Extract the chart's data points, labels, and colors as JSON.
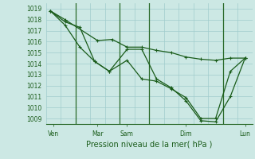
{
  "xlabel": "Pression niveau de la mer( hPa )",
  "bg_color": "#cce8e4",
  "grid_color": "#a0cccc",
  "line_color": "#1a5c1a",
  "vline_color": "#2a6a2a",
  "ylim": [
    1008.5,
    1019.5
  ],
  "yticks": [
    1009,
    1010,
    1011,
    1012,
    1013,
    1014,
    1015,
    1016,
    1017,
    1018,
    1019
  ],
  "xlim": [
    0,
    14
  ],
  "xtick_positions": [
    0.5,
    3.5,
    5.5,
    9.5,
    13.5
  ],
  "xtick_labels": [
    "Ven",
    "Mar",
    "Sam",
    "Dim",
    "Lun"
  ],
  "vlines_x": [
    2,
    5,
    7,
    12
  ],
  "series1_x": [
    0.3,
    1.3,
    3.5,
    4.5,
    5.5,
    6.5,
    7.5,
    8.5,
    9.5,
    10.5,
    11.5,
    12.5,
    13.5
  ],
  "series1_y": [
    1018.8,
    1018.0,
    1016.1,
    1016.2,
    1015.5,
    1015.5,
    1015.2,
    1015.0,
    1014.6,
    1014.4,
    1014.3,
    1014.5,
    1014.5
  ],
  "series2_x": [
    0.3,
    1.3,
    2.3,
    3.3,
    4.3,
    5.5,
    6.5,
    7.5,
    8.5,
    9.5,
    10.5,
    11.5,
    12.5,
    13.5
  ],
  "series2_y": [
    1018.8,
    1017.5,
    1015.5,
    1014.2,
    1013.3,
    1014.3,
    1012.6,
    1012.4,
    1011.7,
    1010.9,
    1009.0,
    1009.0,
    1013.3,
    1014.5
  ],
  "series3_x": [
    0.3,
    1.3,
    2.3,
    3.3,
    4.3,
    5.5,
    6.5,
    7.5,
    8.5,
    9.5,
    10.5,
    11.5,
    12.5,
    13.5
  ],
  "series3_y": [
    1018.8,
    1017.8,
    1017.3,
    1014.2,
    1013.3,
    1015.3,
    1015.3,
    1012.6,
    1011.8,
    1010.6,
    1008.8,
    1008.7,
    1011.0,
    1014.5
  ],
  "marker_size": 3.0,
  "linewidth": 0.9,
  "ytick_fontsize": 5.5,
  "xtick_fontsize": 5.5,
  "xlabel_fontsize": 7
}
